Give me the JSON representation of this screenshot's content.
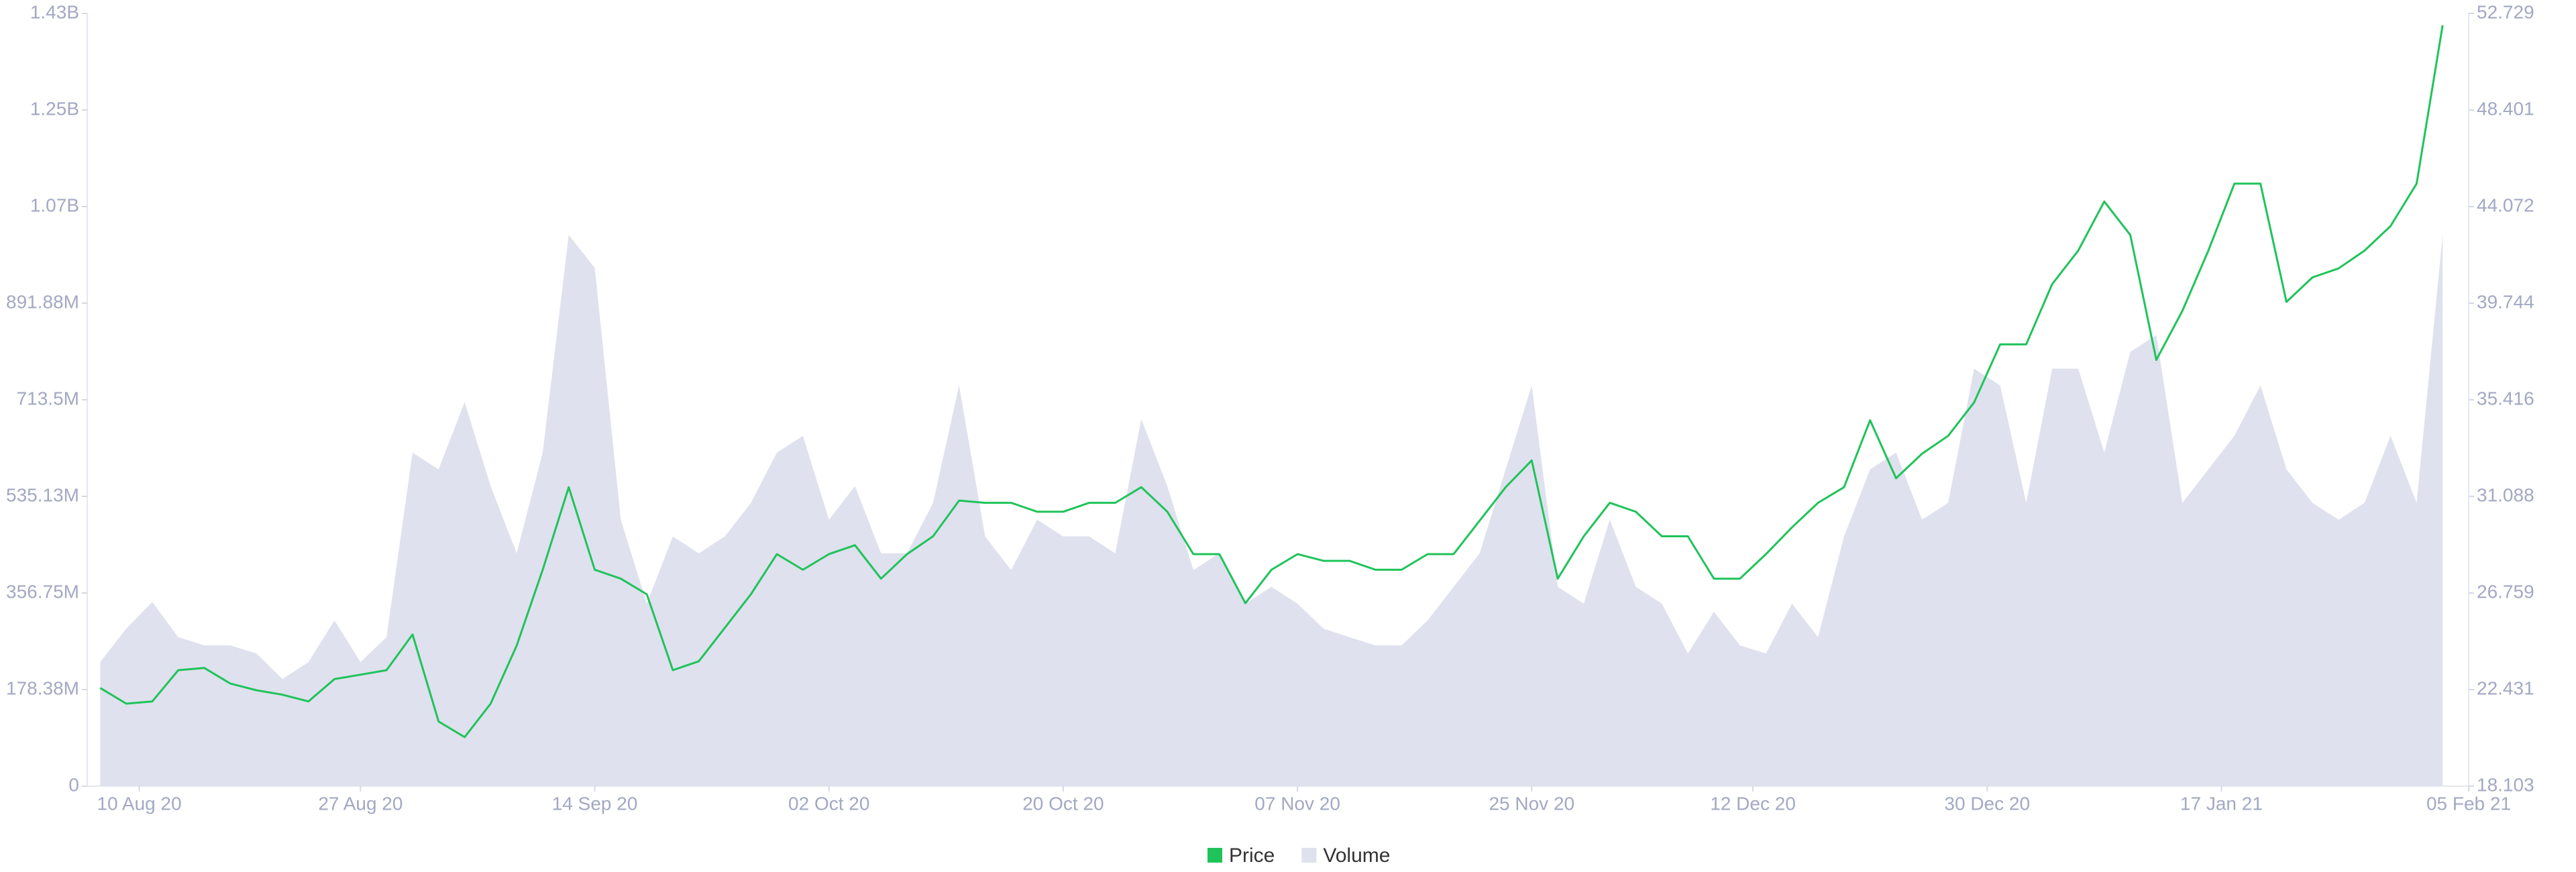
{
  "chart_data": {
    "type": "line",
    "x": [
      "2020-08-07",
      "2020-08-09",
      "2020-08-11",
      "2020-08-13",
      "2020-08-15",
      "2020-08-17",
      "2020-08-19",
      "2020-08-21",
      "2020-08-23",
      "2020-08-25",
      "2020-08-27",
      "2020-08-29",
      "2020-08-31",
      "2020-09-02",
      "2020-09-04",
      "2020-09-06",
      "2020-09-08",
      "2020-09-10",
      "2020-09-12",
      "2020-09-14",
      "2020-09-16",
      "2020-09-18",
      "2020-09-20",
      "2020-09-22",
      "2020-09-24",
      "2020-09-26",
      "2020-09-28",
      "2020-09-30",
      "2020-10-02",
      "2020-10-04",
      "2020-10-06",
      "2020-10-08",
      "2020-10-10",
      "2020-10-12",
      "2020-10-14",
      "2020-10-16",
      "2020-10-18",
      "2020-10-20",
      "2020-10-22",
      "2020-10-24",
      "2020-10-26",
      "2020-10-28",
      "2020-10-30",
      "2020-11-01",
      "2020-11-03",
      "2020-11-05",
      "2020-11-07",
      "2020-11-09",
      "2020-11-11",
      "2020-11-13",
      "2020-11-15",
      "2020-11-17",
      "2020-11-19",
      "2020-11-21",
      "2020-11-23",
      "2020-11-25",
      "2020-11-27",
      "2020-11-29",
      "2020-12-01",
      "2020-12-03",
      "2020-12-05",
      "2020-12-07",
      "2020-12-09",
      "2020-12-11",
      "2020-12-13",
      "2020-12-15",
      "2020-12-17",
      "2020-12-19",
      "2020-12-21",
      "2020-12-23",
      "2020-12-25",
      "2020-12-27",
      "2020-12-29",
      "2020-12-31",
      "2021-01-02",
      "2021-01-04",
      "2021-01-06",
      "2021-01-08",
      "2021-01-10",
      "2021-01-12",
      "2021-01-14",
      "2021-01-16",
      "2021-01-18",
      "2021-01-20",
      "2021-01-22",
      "2021-01-24",
      "2021-01-26",
      "2021-01-28",
      "2021-01-30",
      "2021-02-01",
      "2021-02-03"
    ],
    "xlim": [
      "2020-08-06",
      "2021-02-05"
    ],
    "xticks": [
      {
        "value": "2020-08-10",
        "label": "10 Aug 20"
      },
      {
        "value": "2020-08-27",
        "label": "27 Aug 20"
      },
      {
        "value": "2020-09-14",
        "label": "14 Sep 20"
      },
      {
        "value": "2020-10-02",
        "label": "02 Oct 20"
      },
      {
        "value": "2020-10-20",
        "label": "20 Oct 20"
      },
      {
        "value": "2020-11-07",
        "label": "07 Nov 20"
      },
      {
        "value": "2020-11-25",
        "label": "25 Nov 20"
      },
      {
        "value": "2020-12-12",
        "label": "12 Dec 20"
      },
      {
        "value": "2020-12-30",
        "label": "30 Dec 20"
      },
      {
        "value": "2021-01-17",
        "label": "17 Jan 21"
      },
      {
        "value": "2021-02-05",
        "label": "05 Feb 21"
      }
    ],
    "ylim": [
      0,
      1427000000
    ],
    "yticks": [
      0,
      {
        "value": 178375000,
        "label": "178.38M"
      },
      {
        "value": 356750000,
        "label": "356.75M"
      },
      {
        "value": 535125000,
        "label": "535.13M"
      },
      {
        "value": 713500000,
        "label": "713.5M"
      },
      {
        "value": 891875000,
        "label": "891.88M"
      },
      {
        "value": 1070250000,
        "label": "1.07B"
      },
      {
        "value": 1248625000,
        "label": "1.25B"
      },
      {
        "value": 1427000000,
        "label": "1.43B"
      }
    ],
    "y2lim": [
      18.103,
      52.729
    ],
    "y2ticks": [
      18.103,
      22.431,
      26.759,
      31.088,
      35.416,
      39.744,
      44.072,
      48.401,
      52.729
    ],
    "series": [
      {
        "name": "Price",
        "color": "#1fc35a",
        "axis": "y2",
        "values": [
          22.5,
          21.8,
          21.9,
          23.3,
          23.4,
          22.7,
          22.4,
          22.2,
          21.9,
          22.9,
          23.1,
          23.3,
          24.9,
          21.0,
          20.3,
          21.8,
          24.4,
          27.8,
          31.5,
          27.8,
          27.4,
          26.7,
          23.3,
          23.7,
          25.2,
          26.7,
          28.5,
          27.8,
          28.5,
          28.9,
          27.4,
          28.5,
          29.3,
          30.9,
          30.8,
          30.8,
          30.4,
          30.4,
          30.8,
          30.8,
          31.5,
          30.4,
          28.5,
          28.5,
          26.3,
          27.8,
          28.5,
          28.2,
          28.2,
          27.8,
          27.8,
          28.5,
          28.5,
          30.0,
          31.5,
          32.7,
          27.4,
          29.3,
          30.8,
          30.4,
          29.3,
          29.3,
          27.4,
          27.4,
          28.5,
          29.7,
          30.8,
          31.5,
          34.5,
          31.9,
          33.0,
          33.8,
          35.3,
          37.9,
          37.9,
          40.6,
          42.1,
          44.3,
          42.8,
          37.2,
          39.4,
          42.1,
          45.1,
          45.1,
          39.8,
          40.9,
          41.3,
          42.1,
          43.2,
          45.1,
          52.2
        ]
      },
      {
        "name": "Volume",
        "color": "#dfe1ee",
        "axis": "y",
        "values": [
          229000000,
          291000000,
          340000000,
          275000000,
          260000000,
          260000000,
          245000000,
          198000000,
          229000000,
          306000000,
          229000000,
          275000000,
          616000000,
          585000000,
          709000000,
          554000000,
          430000000,
          616000000,
          1018000000,
          957000000,
          492000000,
          337000000,
          461000000,
          430000000,
          461000000,
          523000000,
          616000000,
          647000000,
          492000000,
          554000000,
          430000000,
          430000000,
          523000000,
          740000000,
          461000000,
          399000000,
          492000000,
          461000000,
          461000000,
          430000000,
          678000000,
          554000000,
          399000000,
          430000000,
          337000000,
          368000000,
          337000000,
          291000000,
          275000000,
          260000000,
          260000000,
          306000000,
          368000000,
          430000000,
          585000000,
          740000000,
          368000000,
          337000000,
          492000000,
          368000000,
          337000000,
          245000000,
          322000000,
          260000000,
          245000000,
          337000000,
          275000000,
          461000000,
          585000000,
          616000000,
          492000000,
          523000000,
          771000000,
          740000000,
          523000000,
          771000000,
          771000000,
          616000000,
          802000000,
          833000000,
          523000000,
          585000000,
          647000000,
          740000000,
          585000000,
          523000000,
          492000000,
          523000000,
          647000000,
          523000000,
          1018000000
        ]
      }
    ]
  }
}
